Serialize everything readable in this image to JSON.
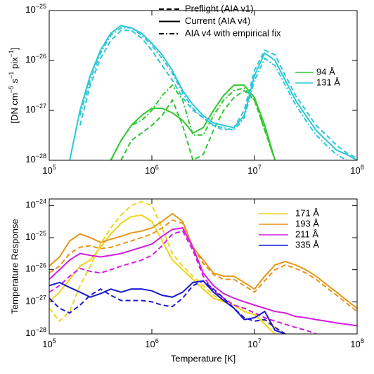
{
  "chart_data": [
    {
      "type": "line",
      "log_x": true,
      "log_y": true,
      "ylabel_parts": [
        "[DN cm",
        "−5",
        " s",
        "−1",
        " pix",
        "−1",
        "]"
      ],
      "xlim": [
        100000,
        100000000
      ],
      "ylim": [
        1e-28,
        1e-25
      ],
      "xticks": [
        {
          "value": 100000,
          "label": "10",
          "exponent": "5"
        },
        {
          "value": 1000000,
          "label": "10",
          "exponent": "6"
        },
        {
          "value": 10000000,
          "label": "10",
          "exponent": "7"
        },
        {
          "value": 100000000,
          "label": "10",
          "exponent": "8"
        }
      ],
      "yticks": [
        {
          "value": 1e-28,
          "label": "10",
          "exponent": "−28"
        },
        {
          "value": 1e-27,
          "label": "10",
          "exponent": "−27"
        },
        {
          "value": 1e-26,
          "label": "10",
          "exponent": "−26"
        },
        {
          "value": 1e-25,
          "label": "10",
          "exponent": "−25"
        }
      ],
      "styles": [
        {
          "name": "Preflight (AIA v1)",
          "dash": "dashed"
        },
        {
          "name": "Current (AIA v4)",
          "dash": "solid"
        },
        {
          "name": "AIA v4 with empirical fix",
          "dash": "dashdot"
        }
      ],
      "x": [
        100000,
        125893,
        158489,
        199526,
        251189,
        316228,
        398107,
        501187,
        630957,
        794328,
        1000000,
        1258925,
        1584893,
        1995262,
        2511886,
        3162278,
        3981072,
        5011872,
        6309573,
        7943282,
        10000000,
        12589254,
        15848932,
        19952623,
        25118864,
        31622777,
        39810717,
        50118723,
        63095734,
        79432823,
        100000000
      ],
      "series": [
        {
          "name": "94 Å",
          "color": "#2fc92f",
          "curves": [
            {
              "dash": "dashed",
              "values": [
                null,
                null,
                null,
                null,
                null,
                null,
                null,
                1e-28,
                2.5e-28,
                3.5e-28,
                5e-28,
                7.9e-28,
                1.6e-27,
                5e-28,
                1e-28,
                1.3e-28,
                4e-28,
                1e-27,
                1.8e-27,
                2.5e-27,
                1.6e-27,
                4e-28,
                1e-28,
                null,
                null,
                null,
                null,
                null,
                null,
                null,
                null
              ]
            },
            {
              "dash": "solid",
              "values": [
                null,
                null,
                null,
                null,
                null,
                null,
                1e-28,
                2.5e-28,
                5e-28,
                7.9e-28,
                1.1e-27,
                1.1e-27,
                8.9e-28,
                6.3e-28,
                3.5e-28,
                4.5e-28,
                1e-27,
                2e-27,
                3.2e-27,
                3.2e-27,
                1.8e-27,
                5e-28,
                1e-28,
                null,
                null,
                null,
                null,
                null,
                null,
                null,
                null
              ]
            },
            {
              "dash": "dashdot",
              "values": [
                null,
                null,
                null,
                null,
                null,
                null,
                1e-28,
                2.5e-28,
                5e-28,
                6.3e-28,
                1e-27,
                2e-27,
                3.2e-27,
                1.6e-27,
                3.2e-28,
                3.2e-28,
                7.9e-28,
                1.6e-27,
                2.5e-27,
                2.8e-27,
                1.6e-27,
                4e-28,
                1e-28,
                null,
                null,
                null,
                null,
                null,
                null,
                null,
                null
              ]
            }
          ]
        },
        {
          "name": "131 Å",
          "color": "#2cc7d8",
          "curves": [
            {
              "dash": "dashed",
              "values": [
                null,
                null,
                null,
                5e-28,
                3.2e-27,
                1.1e-26,
                2.5e-26,
                4e-26,
                4e-26,
                2.8e-26,
                1.6e-26,
                7.9e-27,
                4e-27,
                1.8e-27,
                1e-27,
                7.1e-28,
                5e-28,
                4e-28,
                4.5e-28,
                1e-27,
                6.3e-27,
                1.6e-26,
                1.3e-26,
                5e-27,
                2e-27,
                1e-27,
                5e-28,
                3.2e-28,
                2e-28,
                1.4e-28,
                1.1e-28
              ]
            },
            {
              "dash": "solid",
              "values": [
                null,
                null,
                1e-28,
                1e-27,
                5e-27,
                1.6e-26,
                3.5e-26,
                5e-26,
                4.5e-26,
                3.5e-26,
                2.2e-26,
                1.3e-26,
                6.3e-27,
                2.5e-27,
                1.3e-27,
                7.9e-28,
                5.6e-28,
                5e-28,
                4.5e-28,
                7.9e-28,
                5e-27,
                1.4e-26,
                1e-26,
                4e-27,
                1.6e-27,
                7.9e-28,
                4e-28,
                2.5e-28,
                1.6e-28,
                1.3e-28,
                1e-28
              ]
            },
            {
              "dash": "dashdot",
              "values": [
                null,
                null,
                null,
                7.9e-28,
                4e-27,
                1.4e-26,
                3.2e-26,
                4.5e-26,
                4.5e-26,
                3.2e-26,
                2e-26,
                1.1e-26,
                5.6e-27,
                2.2e-27,
                1.1e-27,
                7.1e-28,
                5e-28,
                4.5e-28,
                4e-28,
                7.1e-28,
                4e-27,
                1.1e-26,
                7.9e-27,
                3.2e-27,
                1.3e-27,
                6.3e-28,
                3.2e-28,
                2e-28,
                1.3e-28,
                1e-28,
                null
              ]
            }
          ]
        }
      ]
    },
    {
      "type": "line",
      "log_x": true,
      "log_y": true,
      "ylabel": "Temperature Response",
      "xlabel": "Temperature [K]",
      "xlim": [
        100000,
        100000000
      ],
      "ylim": [
        1e-28,
        1.6e-24
      ],
      "xticks": [
        {
          "value": 100000,
          "label": "10",
          "exponent": "5"
        },
        {
          "value": 1000000,
          "label": "10",
          "exponent": "6"
        },
        {
          "value": 10000000,
          "label": "10",
          "exponent": "7"
        },
        {
          "value": 100000000,
          "label": "10",
          "exponent": "8"
        }
      ],
      "yticks": [
        {
          "value": 1e-28,
          "label": "10",
          "exponent": "−28"
        },
        {
          "value": 1e-27,
          "label": "10",
          "exponent": "−27"
        },
        {
          "value": 1e-26,
          "label": "10",
          "exponent": "−26"
        },
        {
          "value": 1e-25,
          "label": "10",
          "exponent": "−25"
        },
        {
          "value": 1e-24,
          "label": "10",
          "exponent": "−24"
        }
      ],
      "x": [
        100000,
        125893,
        158489,
        199526,
        251189,
        316228,
        398107,
        501187,
        630957,
        794328,
        1000000,
        1258925,
        1584893,
        1995262,
        2511886,
        3162278,
        3981072,
        5011872,
        6309573,
        7943282,
        10000000,
        12589254,
        15848932,
        19952623,
        25118864,
        31622777,
        39810717,
        50118723,
        63095734,
        79432823,
        100000000
      ],
      "series": [
        {
          "name": "171 Å",
          "color": "#f0d418",
          "curves": [
            {
              "dash": "dashed",
              "values": [
                6.3e-28,
                2.5e-28,
                5e-28,
                3.2e-27,
                1.3e-26,
                6.3e-26,
                2e-25,
                5e-25,
                1e-24,
                1.3e-24,
                1e-24,
                2e-25,
                3.2e-26,
                1.3e-26,
                6.3e-27,
                3.2e-27,
                1.6e-27,
                1e-27,
                7.9e-28,
                5e-28,
                4e-28,
                2.5e-28,
                1.6e-28,
                1e-28,
                null,
                null,
                null,
                null,
                null,
                null,
                null
              ]
            },
            {
              "dash": "solid",
              "values": [
                1e-27,
                2e-27,
                5e-27,
                1.3e-26,
                2e-26,
                5e-26,
                1.3e-25,
                2.8e-25,
                4.5e-25,
                5e-25,
                3.2e-25,
                7.9e-26,
                2e-26,
                1e-26,
                5e-27,
                2.5e-27,
                1.3e-27,
                1e-27,
                7.9e-28,
                5e-28,
                4e-28,
                2e-28,
                1e-28,
                null,
                null,
                null,
                null,
                null,
                null,
                null,
                null
              ]
            }
          ]
        },
        {
          "name": "193 Å",
          "color": "#e8961a",
          "curves": [
            {
              "dash": "dashed",
              "values": [
                7.9e-27,
                1.3e-26,
                3.2e-26,
                5e-26,
                5.6e-26,
                4.5e-26,
                5e-26,
                6.3e-26,
                7.9e-26,
                1e-25,
                1.3e-25,
                2e-25,
                3.5e-25,
                2.8e-25,
                5e-26,
                1.6e-26,
                7.1e-27,
                5e-27,
                5e-27,
                3.2e-27,
                2e-27,
                4.5e-27,
                1e-26,
                1.4e-26,
                1.1e-26,
                7.9e-27,
                5e-27,
                2.8e-27,
                1.6e-27,
                8.9e-28,
                5e-28
              ]
            },
            {
              "dash": "solid",
              "values": [
                1.3e-26,
                2.5e-26,
                7.9e-26,
                1.3e-25,
                1e-25,
                7.1e-26,
                8.9e-26,
                1.1e-25,
                1.4e-25,
                1.6e-25,
                2e-25,
                3.2e-25,
                5.6e-25,
                3.2e-25,
                5e-26,
                2e-26,
                7.9e-27,
                6.3e-27,
                6.3e-27,
                4e-27,
                2.5e-27,
                6.3e-27,
                1.4e-26,
                1.8e-26,
                1.4e-26,
                1e-26,
                6.3e-27,
                3.5e-27,
                2e-27,
                1.1e-27,
                6.3e-28
              ]
            }
          ]
        },
        {
          "name": "211 Å",
          "color": "#d41ce0",
          "curves": [
            {
              "dash": "dashed",
              "values": [
                2e-27,
                3.2e-27,
                6.3e-27,
                1.1e-26,
                8.9e-27,
                7.9e-27,
                1e-26,
                1.3e-26,
                1.6e-26,
                2e-26,
                2.8e-26,
                5.6e-26,
                1.3e-25,
                1.6e-25,
                4e-26,
                6.3e-27,
                2.2e-27,
                1.3e-27,
                7.9e-28,
                6.3e-28,
                4.5e-28,
                3.2e-28,
                2.5e-28,
                2e-28,
                1.6e-28,
                1.3e-28,
                1e-28,
                null,
                null,
                null,
                null
              ]
            },
            {
              "dash": "solid",
              "values": [
                5e-27,
                1e-26,
                2e-26,
                3.2e-26,
                2.8e-26,
                2.5e-26,
                2.8e-26,
                3.2e-26,
                4e-26,
                5e-26,
                6.3e-26,
                1.1e-25,
                1.8e-25,
                2e-25,
                5e-26,
                7.9e-27,
                3.2e-27,
                1.8e-27,
                1.3e-27,
                1e-27,
                7.9e-28,
                6.3e-28,
                5e-28,
                4.5e-28,
                3.5e-28,
                3.2e-28,
                2.8e-28,
                2.5e-28,
                2.2e-28,
                2e-28,
                1.8e-28
              ]
            }
          ]
        },
        {
          "name": "335 Å",
          "color": "#1a1ad0",
          "curves": [
            {
              "dash": "dashed",
              "values": [
                1.3e-27,
                6.3e-28,
                4.5e-28,
                7.9e-28,
                1.6e-27,
                2.5e-27,
                1.6e-27,
                1.1e-27,
                1.1e-27,
                1.1e-27,
                1e-27,
                7.9e-28,
                7.1e-28,
                1.3e-27,
                3.2e-27,
                4.5e-27,
                2.5e-27,
                1.3e-27,
                6.3e-28,
                3.2e-28,
                2.5e-28,
                2.8e-28,
                1.6e-28,
                1e-28,
                null,
                null,
                null,
                null,
                null,
                null,
                null
              ]
            },
            {
              "dash": "solid",
              "values": [
                3.2e-27,
                4e-27,
                2.8e-27,
                2e-27,
                1.4e-27,
                1.8e-27,
                2.5e-27,
                2e-27,
                2.5e-27,
                2.5e-27,
                2.2e-27,
                1.6e-27,
                1.4e-27,
                2e-27,
                4e-27,
                4.5e-27,
                2e-27,
                1.1e-27,
                6.3e-28,
                2.8e-28,
                3.2e-28,
                5e-28,
                1.3e-28,
                1e-28,
                null,
                null,
                null,
                null,
                null,
                null,
                null
              ]
            }
          ]
        }
      ]
    }
  ]
}
